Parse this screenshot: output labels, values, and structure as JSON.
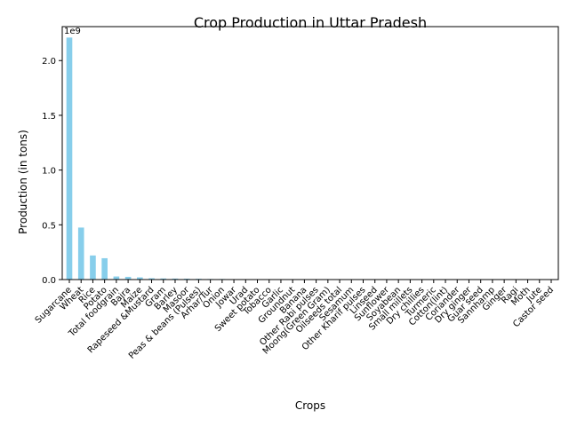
{
  "chart_data": {
    "type": "bar",
    "title": "Crop Production in Uttar Pradesh",
    "xlabel": "Crops",
    "ylabel": "Production (in tons)",
    "y_offset_label": "1e9",
    "y_ticks": [
      0.0,
      0.5,
      1.0,
      1.5,
      2.0
    ],
    "y_tick_labels": [
      "0.0",
      "0.5",
      "1.0",
      "1.5",
      "2.0"
    ],
    "ylim": [
      0,
      2.31
    ],
    "bar_color": "#87CEEB",
    "categories": [
      "Sugarcane",
      "Wheat",
      "Rice",
      "Potato",
      "Total foodgrain",
      "Bajra",
      "Maize",
      "Rapeseed &Mustard",
      "Gram",
      "Barley",
      "Masoor",
      "Peas & beans (Pulses)",
      "Arhar/Tur",
      "Onion",
      "Jowar",
      "Urad",
      "Sweet potato",
      "Tobacco",
      "Garlic",
      "Groundnut",
      "Banana",
      "Other Rabi pulses",
      "Moong(Green Gram)",
      "Oilseeds total",
      "Sesamum",
      "Other Kharif pulses",
      "Linseed",
      "Sunflower",
      "Soyabean",
      "Small millets",
      "Dry chillies",
      "Turmeric",
      "Cotton(lint)",
      "Coriander",
      "Dry ginger",
      "Guar seed",
      "Sannhamp",
      "Ginger",
      "Ragi",
      "Moth",
      "Jute",
      "Castor seed"
    ],
    "values": [
      2.21,
      0.475,
      0.22,
      0.195,
      0.028,
      0.025,
      0.02,
      0.012,
      0.01,
      0.009,
      0.008,
      0.007,
      0.005,
      0.005,
      0.004,
      0.004,
      0.003,
      0.003,
      0.002,
      0.002,
      0.002,
      0.002,
      0.0015,
      0.0015,
      0.001,
      0.001,
      0.0008,
      0.0007,
      0.0006,
      0.0005,
      0.0004,
      0.0004,
      0.0003,
      0.0003,
      0.0002,
      0.0002,
      0.0002,
      0.0001,
      0.0001,
      0.0001,
      5e-05,
      2e-05
    ],
    "legend": "none",
    "grid": false
  }
}
